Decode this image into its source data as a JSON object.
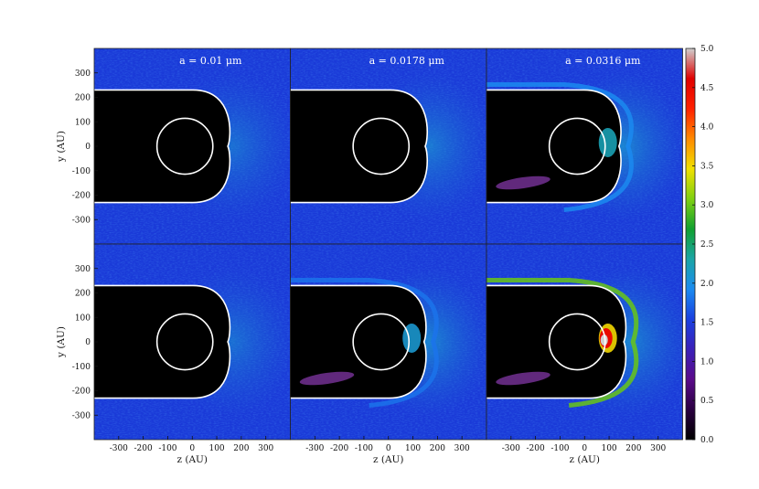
{
  "chart_data": {
    "type": "heatmap",
    "grid": {
      "rows": 2,
      "cols": 3
    },
    "xlabel": "z (AU)",
    "ylabel": "y (AU)",
    "xlim": [
      -400,
      400
    ],
    "ylim": [
      400,
      -400
    ],
    "x_ticks": [
      -300,
      -200,
      -100,
      0,
      100,
      200,
      300
    ],
    "y_ticks": [
      -300,
      -200,
      -100,
      0,
      100,
      200,
      300
    ],
    "columns": [
      {
        "label": "a = 0.01 μm"
      },
      {
        "label": "a = 0.0178 μm"
      },
      {
        "label": "a = 0.0316 μm"
      }
    ],
    "colorbar": {
      "min": 0.0,
      "max": 5.0,
      "ticks": [
        "0.0",
        "0.5",
        "1.0",
        "1.5",
        "2.0",
        "2.5",
        "3.0",
        "3.5",
        "4.0",
        "4.5",
        "5.0"
      ],
      "colormap": [
        "#000000",
        "#2a0040",
        "#5a0a8a",
        "#3a20b8",
        "#1a40e0",
        "#1b8bf0",
        "#1aa5a5",
        "#10a030",
        "#7fd010",
        "#f0e000",
        "#ff8a00",
        "#ff2000",
        "#e00000",
        "#d0d0d0"
      ]
    },
    "inner_circle_radius_au": 120,
    "inner_circle_center_au": [
      -30,
      0
    ],
    "panels": [
      {
        "row": 0,
        "col": 0,
        "cavity_nose_z_au": 145,
        "cavity_half_height_au": 230,
        "enhancement_peak": 1.6
      },
      {
        "row": 0,
        "col": 1,
        "cavity_nose_z_au": 150,
        "cavity_half_height_au": 230,
        "enhancement_peak": 1.9
      },
      {
        "row": 0,
        "col": 2,
        "cavity_nose_z_au": 140,
        "cavity_half_height_au": 230,
        "enhancement_peak": 3.2
      },
      {
        "row": 1,
        "col": 0,
        "cavity_nose_z_au": 145,
        "cavity_half_height_au": 230,
        "enhancement_peak": 1.6
      },
      {
        "row": 1,
        "col": 1,
        "cavity_nose_z_au": 145,
        "cavity_half_height_au": 230,
        "enhancement_peak": 3.0
      },
      {
        "row": 1,
        "col": 2,
        "cavity_nose_z_au": 160,
        "cavity_half_height_au": 230,
        "enhancement_peak": 5.0
      }
    ]
  }
}
